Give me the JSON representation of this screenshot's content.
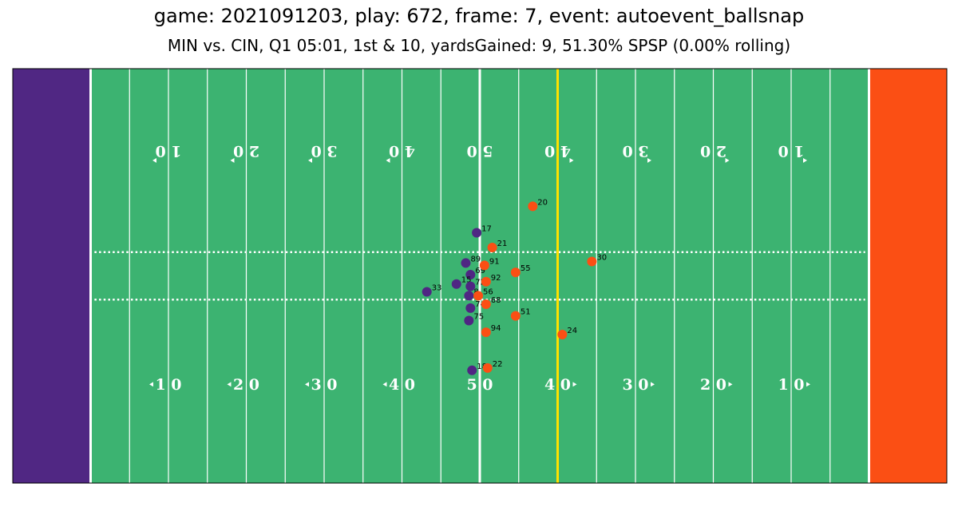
{
  "title": "game: 2021091203, play: 672, frame: 7, event: autoevent_ballsnap",
  "subtitle": "MIN vs. CIN, Q1 05:01, 1st & 10, yardsGained: 9, 51.30% SPSP (0.00% rolling)",
  "colors": {
    "field": "#3cb371",
    "home_endzone": "#502783",
    "away_endzone": "#fb4f14",
    "line_of_scrimmage": "#ffffff",
    "first_down_line": "#ffe100",
    "offense": "#4f2683",
    "defense": "#fb4f14"
  },
  "chart_data": {
    "type": "scatter",
    "title": "game: 2021091203, play: 672, frame: 7, event: autoevent_ballsnap",
    "subtitle": "MIN vs. CIN, Q1 05:01, 1st & 10, yardsGained: 9, 51.30% SPSP (0.00% rolling)",
    "xlim": [
      0,
      120
    ],
    "ylim": [
      0,
      53.3
    ],
    "grid": false,
    "line_of_scrimmage": 60,
    "first_down_line": 70,
    "yard_numbers_bottom": [
      "1 0",
      "2 0",
      "3 0",
      "4 0",
      "5 0",
      "4 0",
      "3 0",
      "2 0",
      "1 0"
    ],
    "yard_numbers_top": [
      "1 0",
      "2 0",
      "3 0",
      "4 0",
      "5 0",
      "4 0",
      "3 0",
      "2 0",
      "1 0"
    ],
    "series": [
      {
        "team": "MIN",
        "color": "#4f2683",
        "points": [
          {
            "jersey": "17",
            "x": 59.6,
            "y": 32.2
          },
          {
            "jersey": "89",
            "x": 58.2,
            "y": 28.3
          },
          {
            "jersey": "69",
            "x": 58.8,
            "y": 26.8
          },
          {
            "jersey": "15",
            "x": 57.0,
            "y": 25.6
          },
          {
            "jersey": "72",
            "x": 58.8,
            "y": 25.3
          },
          {
            "jersey": "33",
            "x": 53.2,
            "y": 24.6
          },
          {
            "jersey": "8",
            "x": 58.6,
            "y": 24.1
          },
          {
            "jersey": "74",
            "x": 58.8,
            "y": 22.5
          },
          {
            "jersey": "75",
            "x": 58.6,
            "y": 20.9
          },
          {
            "jersey": "18",
            "x": 59.0,
            "y": 14.5
          }
        ]
      },
      {
        "team": "CIN",
        "color": "#fb4f14",
        "points": [
          {
            "jersey": "20",
            "x": 66.8,
            "y": 35.6
          },
          {
            "jersey": "21",
            "x": 61.6,
            "y": 30.3
          },
          {
            "jersey": "30",
            "x": 74.4,
            "y": 28.5
          },
          {
            "jersey": "91",
            "x": 60.6,
            "y": 28.0
          },
          {
            "jersey": "55",
            "x": 64.6,
            "y": 27.1
          },
          {
            "jersey": "92",
            "x": 60.8,
            "y": 25.9
          },
          {
            "jersey": "56",
            "x": 59.8,
            "y": 24.1
          },
          {
            "jersey": "68",
            "x": 60.8,
            "y": 23.0
          },
          {
            "jersey": "51",
            "x": 64.6,
            "y": 21.5
          },
          {
            "jersey": "94",
            "x": 60.8,
            "y": 19.4
          },
          {
            "jersey": "24",
            "x": 70.6,
            "y": 19.1
          },
          {
            "jersey": "22",
            "x": 61.0,
            "y": 14.8
          }
        ]
      }
    ]
  }
}
